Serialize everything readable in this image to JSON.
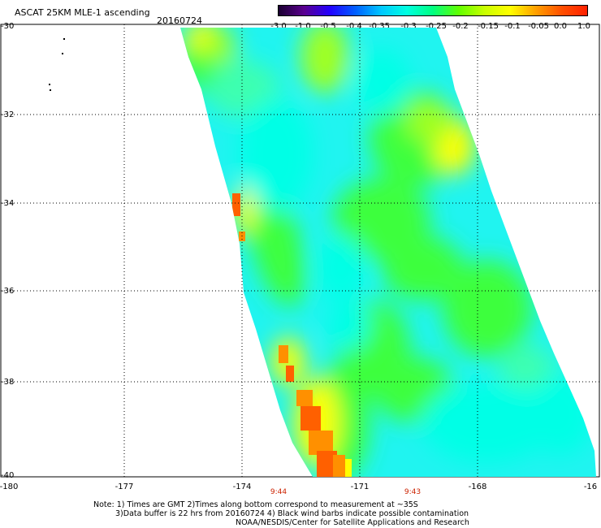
{
  "header": {
    "title": "ASCAT 25KM MLE-1 ascending",
    "date": "20160724"
  },
  "colorbar": {
    "ticks": [
      "-3.0",
      "-1.0",
      "-0.5",
      "-0.4",
      "-0.35",
      "-0.3",
      "-0.25",
      "-0.2",
      "-0.15",
      "-0.1",
      "-0.05",
      "0.0",
      "1.0"
    ],
    "colors": [
      "#1a0030",
      "#5a0090",
      "#2200ff",
      "#0060ff",
      "#00c8ff",
      "#00ffe0",
      "#00ff80",
      "#60ff00",
      "#c8ff00",
      "#ffff00",
      "#ffa000",
      "#ff5000",
      "#ff2000"
    ]
  },
  "map": {
    "lat_labels": [
      "-30",
      "-32",
      "-34",
      "-36",
      "-38",
      "-40"
    ],
    "lon_labels": [
      "-180",
      "-177",
      "-174",
      "-171",
      "-168",
      "-16"
    ],
    "time_labels": [
      "9:44",
      "9:43"
    ]
  },
  "footer": {
    "line1": "Note: 1) Times are GMT 2)Times along bottom correspond to measurement at ~35S",
    "line2": "3)Data buffer is 22 hrs from 20160724 4) Black wind barbs indicate possible contamination",
    "line3": "NOAA/NESDIS/Center for Satellite Applications and Research"
  },
  "palette": {
    "cyan": "#00ffe6",
    "aqua": "#20f4f0",
    "mint": "#3cffb0",
    "green": "#3cff3c",
    "lime": "#a0ff20",
    "yellow": "#ffff00",
    "orange": "#ff9000",
    "red_orange": "#ff6000"
  }
}
